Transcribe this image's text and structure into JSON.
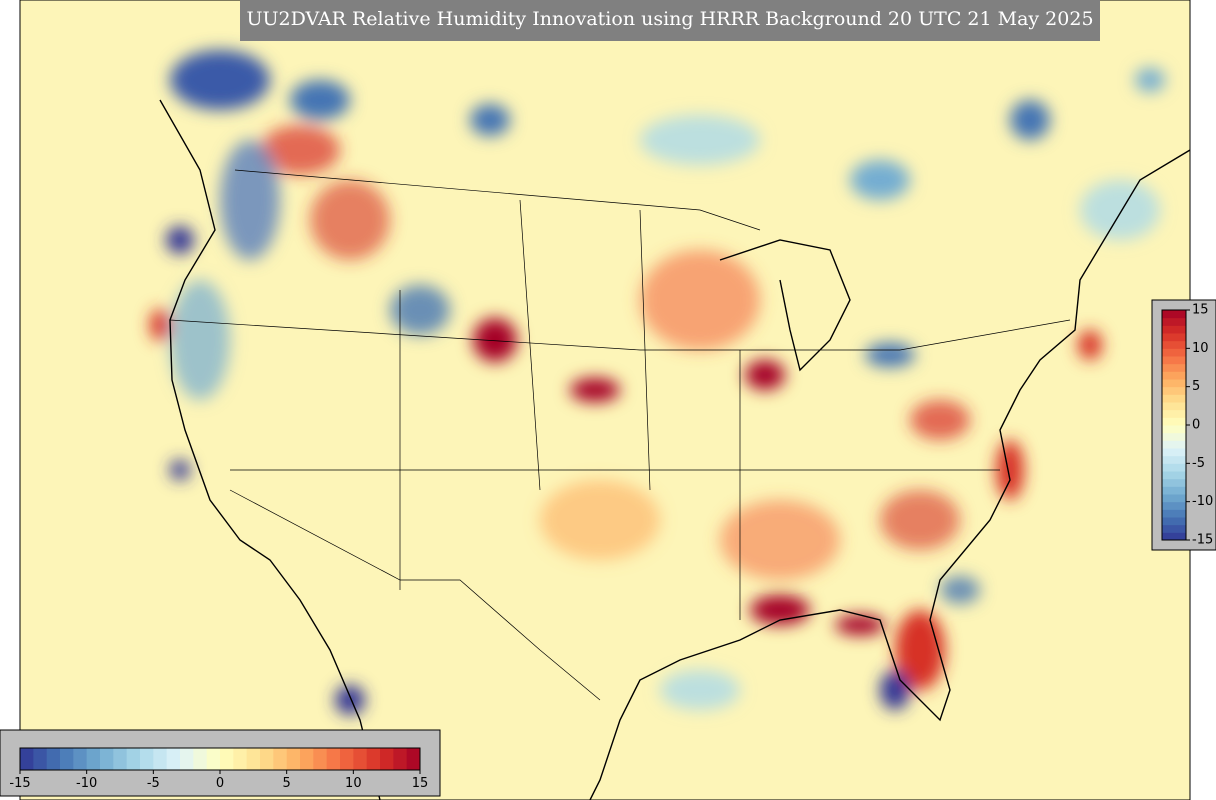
{
  "title": "UU2DVAR Relative Humidity Innovation using HRRR Background 20 UTC 21 May 2025",
  "colorbar": {
    "range": [
      -15,
      15
    ],
    "ticks": [
      -15,
      -10,
      -5,
      0,
      5,
      10,
      15
    ],
    "colors": [
      "#313695",
      "#4575b4",
      "#74add1",
      "#abd9e9",
      "#e0f3f8",
      "#ffffbf",
      "#fee090",
      "#fdae61",
      "#f46d43",
      "#d73027",
      "#a50026"
    ]
  }
}
